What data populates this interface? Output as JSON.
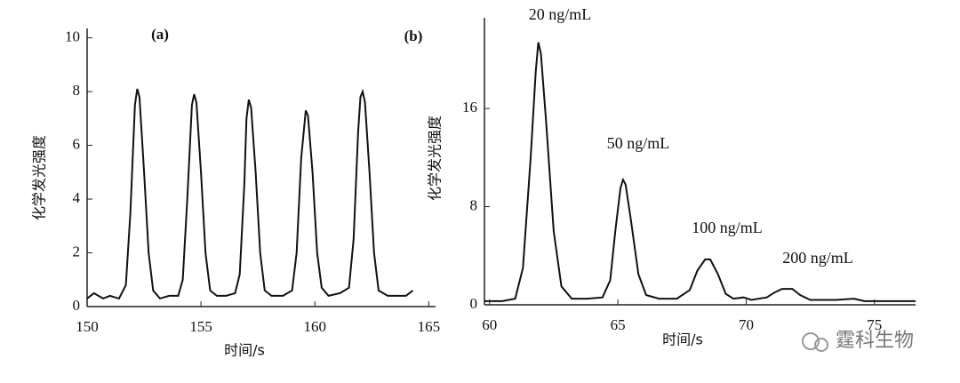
{
  "chart_data": [
    {
      "type": "line",
      "label": "(a)",
      "xlabel": "时间/s",
      "ylabel": "化学发光强度",
      "xlim": [
        150,
        165.3
      ],
      "xticks": [
        150,
        155,
        160,
        165
      ],
      "ylim": [
        0,
        10.35
      ],
      "yticks": [
        0,
        2,
        4,
        6,
        8,
        10
      ],
      "color": "#111111",
      "x": [
        150.0,
        150.3,
        150.7,
        151.0,
        151.4,
        151.7,
        151.9,
        152.1,
        152.2,
        152.3,
        152.5,
        152.7,
        152.9,
        153.2,
        153.6,
        154.0,
        154.2,
        154.4,
        154.6,
        154.7,
        154.8,
        155.0,
        155.2,
        155.4,
        155.7,
        156.1,
        156.5,
        156.7,
        156.9,
        157.0,
        157.1,
        157.2,
        157.4,
        157.6,
        157.8,
        158.1,
        158.6,
        159.0,
        159.2,
        159.4,
        159.6,
        159.7,
        159.9,
        160.1,
        160.3,
        160.6,
        161.1,
        161.5,
        161.7,
        161.9,
        162.0,
        162.1,
        162.2,
        162.4,
        162.6,
        162.8,
        163.2,
        163.6,
        164.0,
        164.3
      ],
      "values": [
        0.3,
        0.5,
        0.3,
        0.4,
        0.3,
        0.8,
        3.5,
        7.5,
        8.1,
        7.8,
        5.0,
        2.0,
        0.6,
        0.3,
        0.4,
        0.4,
        1.0,
        4.0,
        7.5,
        7.9,
        7.6,
        5.0,
        2.0,
        0.6,
        0.4,
        0.4,
        0.5,
        1.2,
        4.5,
        7.0,
        7.7,
        7.4,
        5.0,
        2.0,
        0.6,
        0.4,
        0.4,
        0.6,
        2.0,
        5.5,
        7.3,
        7.1,
        5.0,
        2.0,
        0.7,
        0.4,
        0.5,
        0.7,
        2.5,
        6.5,
        7.8,
        8.0,
        7.6,
        5.0,
        2.0,
        0.6,
        0.4,
        0.4,
        0.4,
        0.6
      ]
    },
    {
      "type": "line",
      "label": "(b)",
      "xlabel": "时间/s",
      "ylabel": "化学发光强度",
      "xlim": [
        59.8,
        76.6
      ],
      "xticks": [
        60,
        65,
        70,
        75
      ],
      "ylim": [
        0,
        23.4
      ],
      "yticks": [
        0,
        8,
        16
      ],
      "color": "#111111",
      "annotations": [
        "20 ng/mL",
        "50 ng/mL",
        "100 ng/mL",
        "200 ng/mL"
      ],
      "x": [
        59.8,
        60.5,
        61.0,
        61.3,
        61.6,
        61.8,
        61.9,
        62.0,
        62.2,
        62.5,
        62.8,
        63.2,
        63.8,
        64.4,
        64.7,
        64.9,
        65.1,
        65.2,
        65.3,
        65.5,
        65.8,
        66.1,
        66.6,
        67.3,
        67.8,
        68.1,
        68.4,
        68.6,
        68.9,
        69.2,
        69.5,
        69.9,
        70.2,
        70.8,
        71.1,
        71.4,
        71.8,
        72.1,
        72.5,
        73.5,
        74.2,
        74.6,
        76.0,
        76.6
      ],
      "values": [
        0.3,
        0.3,
        0.5,
        3,
        12,
        19,
        21.4,
        20.5,
        15,
        6,
        1.5,
        0.5,
        0.5,
        0.6,
        2,
        6,
        9.5,
        10.2,
        9.8,
        7,
        2.5,
        0.8,
        0.5,
        0.5,
        1.2,
        2.8,
        3.7,
        3.7,
        2.5,
        0.9,
        0.5,
        0.6,
        0.4,
        0.6,
        1.0,
        1.3,
        1.3,
        0.8,
        0.4,
        0.4,
        0.5,
        0.3,
        0.3,
        0.3
      ]
    }
  ],
  "watermark": "霆科生物"
}
